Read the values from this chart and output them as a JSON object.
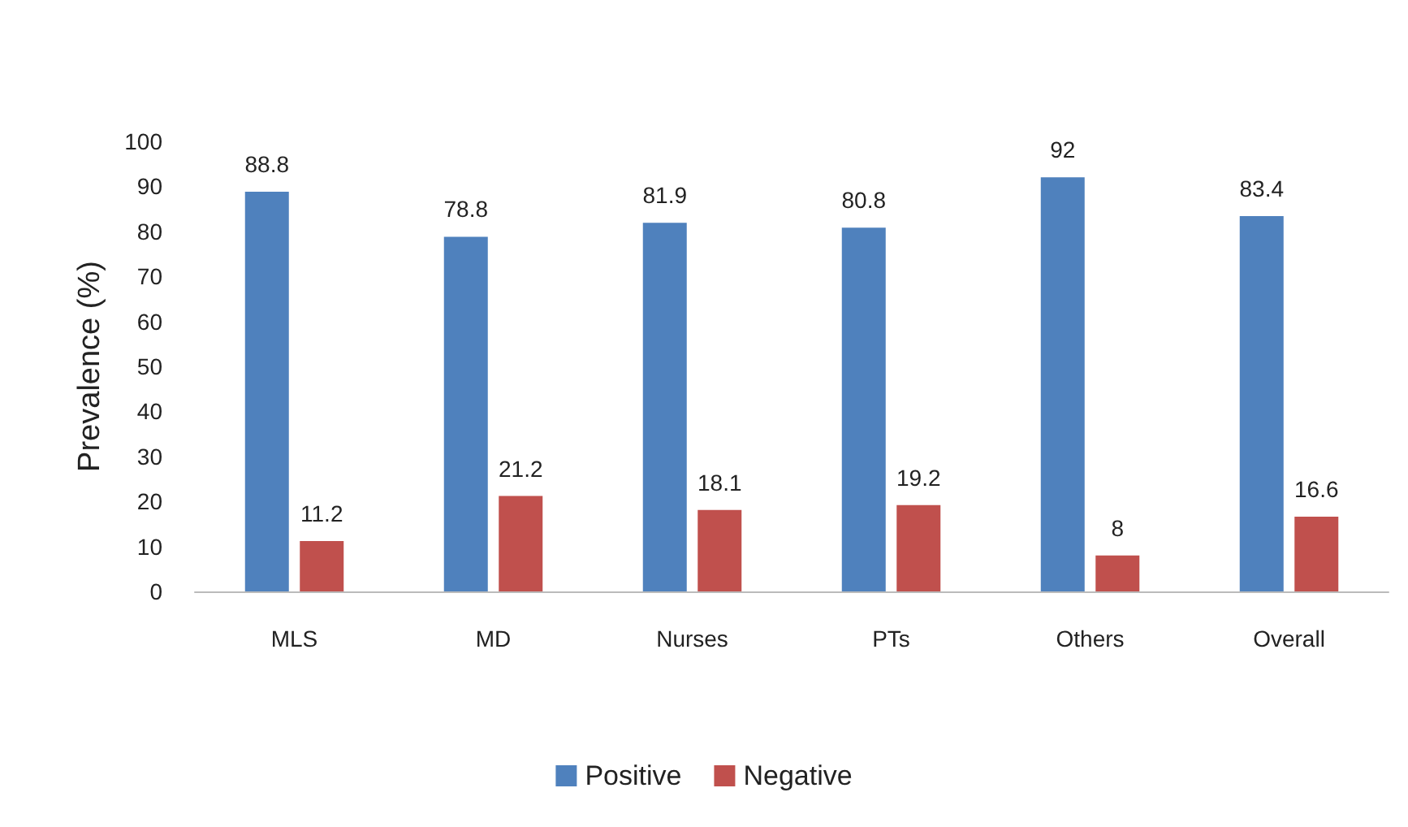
{
  "chart_data": {
    "type": "bar",
    "ylabel": "Prevalence (%)",
    "categories": [
      "MLS",
      "MD",
      "Nurses",
      "PTs",
      "Others",
      "Overall"
    ],
    "series": [
      {
        "name": "Positive",
        "color": "#4f81bd",
        "values": [
          88.8,
          78.8,
          81.9,
          80.8,
          92,
          83.4
        ]
      },
      {
        "name": "Negative",
        "color": "#c0504d",
        "values": [
          11.2,
          21.2,
          18.1,
          19.2,
          8,
          16.6
        ]
      }
    ],
    "ylim": [
      0,
      100
    ],
    "yticks": [
      0,
      10,
      20,
      30,
      40,
      50,
      60,
      70,
      80,
      90,
      100
    ],
    "grid": false,
    "legend": "bottom",
    "data_labels": true
  }
}
